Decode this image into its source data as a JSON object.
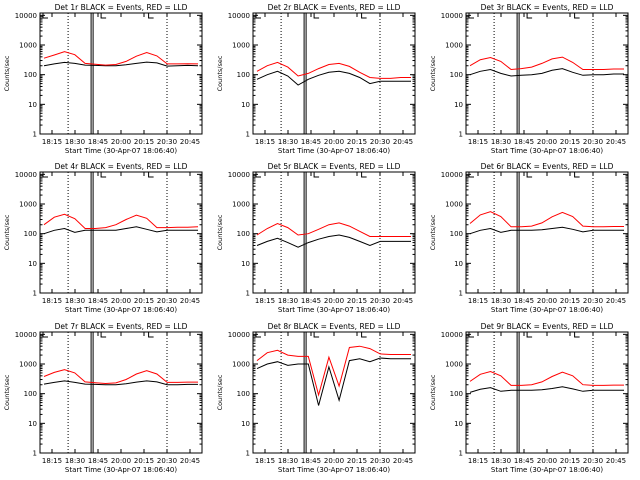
{
  "colors": {
    "events": "#000000",
    "lld": "#ff0000",
    "axis": "#000000"
  },
  "chart_data": [
    {
      "type": "line",
      "title": "Det 1r BLACK = Events, RED = LLD",
      "xlabel": "Start Time (30-Apr-07 18:06:40)",
      "ylabel": "Counts/sec",
      "x_ticks": [
        "18:15",
        "18:30",
        "18:45",
        "20:00",
        "20:15",
        "20:30",
        "20:45"
      ],
      "y_ticks": [
        "1",
        "10",
        "100",
        "1000",
        "10000"
      ],
      "ylim": [
        1,
        12000
      ],
      "yscale": "log",
      "series": [
        {
          "name": "Events",
          "values": [
            200,
            230,
            260,
            240,
            210,
            205,
            200,
            200,
            215,
            240,
            265,
            250,
            195,
            200,
            205,
            200
          ]
        },
        {
          "name": "LLD",
          "values": [
            360,
            460,
            600,
            470,
            240,
            225,
            210,
            220,
            280,
            420,
            560,
            430,
            230,
            230,
            235,
            230
          ]
        }
      ]
    },
    {
      "type": "line",
      "title": "Det 2r BLACK = Events, RED = LLD",
      "xlabel": "Start Time (30-Apr-07 18:06:40)",
      "ylabel": "Counts/sec",
      "x_ticks": [
        "18:15",
        "18:30",
        "18:45",
        "20:00",
        "20:15",
        "20:30",
        "20:45"
      ],
      "y_ticks": [
        "1",
        "10",
        "100",
        "1000",
        "10000"
      ],
      "ylim": [
        1,
        12000
      ],
      "yscale": "log",
      "series": [
        {
          "name": "Events",
          "values": [
            70,
            100,
            130,
            90,
            45,
            70,
            95,
            120,
            130,
            110,
            80,
            50,
            60,
            60,
            60,
            60
          ]
        },
        {
          "name": "LLD",
          "values": [
            130,
            200,
            260,
            180,
            90,
            110,
            160,
            220,
            240,
            190,
            120,
            80,
            75,
            75,
            80,
            80
          ]
        }
      ]
    },
    {
      "type": "line",
      "title": "Det 3r BLACK = Events, RED = LLD",
      "xlabel": "Start Time (30-Apr-07 18:06:40)",
      "ylabel": "Counts/sec",
      "x_ticks": [
        "18:15",
        "18:30",
        "18:45",
        "20:00",
        "20:15",
        "20:30",
        "20:45"
      ],
      "y_ticks": [
        "1",
        "10",
        "100",
        "1000",
        "10000"
      ],
      "ylim": [
        1,
        12000
      ],
      "yscale": "log",
      "series": [
        {
          "name": "Events",
          "values": [
            100,
            130,
            150,
            110,
            90,
            95,
            100,
            110,
            140,
            160,
            120,
            95,
            100,
            100,
            105,
            105
          ]
        },
        {
          "name": "LLD",
          "values": [
            200,
            320,
            380,
            280,
            150,
            160,
            180,
            240,
            340,
            390,
            260,
            150,
            150,
            150,
            155,
            155
          ]
        }
      ]
    },
    {
      "type": "line",
      "title": "Det 4r BLACK = Events, RED = LLD",
      "xlabel": "Start Time (30-Apr-07 18:06:40)",
      "ylabel": "Counts/sec",
      "x_ticks": [
        "18:15",
        "18:30",
        "18:45",
        "20:00",
        "20:15",
        "20:30",
        "20:45"
      ],
      "y_ticks": [
        "1",
        "10",
        "100",
        "1000",
        "10000"
      ],
      "ylim": [
        1,
        12000
      ],
      "yscale": "log",
      "series": [
        {
          "name": "Events",
          "values": [
            100,
            130,
            150,
            110,
            130,
            130,
            130,
            130,
            150,
            170,
            140,
            115,
            130,
            130,
            130,
            130
          ]
        },
        {
          "name": "LLD",
          "values": [
            200,
            360,
            450,
            320,
            150,
            150,
            160,
            200,
            300,
            420,
            330,
            160,
            160,
            165,
            165,
            170
          ]
        }
      ]
    },
    {
      "type": "line",
      "title": "Det 5r BLACK = Events, RED = LLD",
      "xlabel": "Start Time (30-Apr-07 18:06:40)",
      "ylabel": "Counts/sec",
      "x_ticks": [
        "18:15",
        "18:30",
        "18:45",
        "20:00",
        "20:15",
        "20:30",
        "20:45"
      ],
      "y_ticks": [
        "1",
        "10",
        "100",
        "1000",
        "10000"
      ],
      "ylim": [
        1,
        12000
      ],
      "yscale": "log",
      "series": [
        {
          "name": "Events",
          "values": [
            40,
            55,
            70,
            50,
            35,
            50,
            65,
            80,
            90,
            75,
            55,
            40,
            55,
            55,
            55,
            55
          ]
        },
        {
          "name": "LLD",
          "values": [
            90,
            150,
            220,
            160,
            90,
            100,
            140,
            200,
            230,
            180,
            120,
            80,
            80,
            80,
            80,
            80
          ]
        }
      ]
    },
    {
      "type": "line",
      "title": "Det 6r BLACK = Events, RED = LLD",
      "xlabel": "Start Time (30-Apr-07 18:06:40)",
      "ylabel": "Counts/sec",
      "x_ticks": [
        "18:15",
        "18:30",
        "18:45",
        "20:00",
        "20:15",
        "20:30",
        "20:45"
      ],
      "y_ticks": [
        "1",
        "10",
        "100",
        "1000",
        "10000"
      ],
      "ylim": [
        1,
        12000
      ],
      "yscale": "log",
      "series": [
        {
          "name": "Events",
          "values": [
            100,
            130,
            150,
            110,
            130,
            130,
            130,
            135,
            150,
            165,
            140,
            115,
            130,
            130,
            130,
            130
          ]
        },
        {
          "name": "LLD",
          "values": [
            220,
            430,
            550,
            380,
            170,
            170,
            180,
            230,
            370,
            520,
            380,
            180,
            170,
            170,
            175,
            175
          ]
        }
      ]
    },
    {
      "type": "line",
      "title": "Det 7r BLACK = Events, RED = LLD",
      "xlabel": "Start Time (30-Apr-07 18:06:40)",
      "ylabel": "Counts/sec",
      "x_ticks": [
        "18:15",
        "18:30",
        "18:45",
        "20:00",
        "20:15",
        "20:30",
        "20:45"
      ],
      "y_ticks": [
        "1",
        "10",
        "100",
        "1000",
        "10000"
      ],
      "ylim": [
        1,
        12000
      ],
      "yscale": "log",
      "series": [
        {
          "name": "Events",
          "values": [
            210,
            240,
            270,
            240,
            210,
            205,
            200,
            200,
            215,
            245,
            270,
            250,
            200,
            200,
            205,
            205
          ]
        },
        {
          "name": "LLD",
          "values": [
            380,
            520,
            650,
            500,
            250,
            235,
            220,
            230,
            300,
            460,
            600,
            460,
            240,
            240,
            245,
            245
          ]
        }
      ]
    },
    {
      "type": "line",
      "title": "Det 8r BLACK = Events, RED = LLD",
      "xlabel": "Start Time (30-Apr-07 18:06:40)",
      "ylabel": "Counts/sec",
      "x_ticks": [
        "18:15",
        "18:30",
        "18:45",
        "20:00",
        "20:15",
        "20:30",
        "20:45"
      ],
      "y_ticks": [
        "1",
        "10",
        "100",
        "1000",
        "10000"
      ],
      "ylim": [
        1,
        12000
      ],
      "yscale": "log",
      "series": [
        {
          "name": "Events",
          "values": [
            700,
            1000,
            1200,
            900,
            1000,
            1000,
            40,
            800,
            60,
            1300,
            1500,
            1200,
            1600,
            1500,
            1500,
            1500
          ]
        },
        {
          "name": "LLD",
          "values": [
            1300,
            2400,
            2900,
            2000,
            1800,
            1800,
            90,
            1700,
            180,
            3600,
            4000,
            3300,
            2200,
            2100,
            2100,
            2100
          ]
        }
      ]
    },
    {
      "type": "line",
      "title": "Det 9r BLACK = Events, RED = LLD",
      "xlabel": "Start Time (30-Apr-07 18:06:40)",
      "ylabel": "Counts/sec",
      "x_ticks": [
        "18:15",
        "18:30",
        "18:45",
        "20:00",
        "20:15",
        "20:30",
        "20:45"
      ],
      "y_ticks": [
        "1",
        "10",
        "100",
        "1000",
        "10000"
      ],
      "ylim": [
        1,
        12000
      ],
      "yscale": "log",
      "series": [
        {
          "name": "Events",
          "values": [
            110,
            140,
            160,
            120,
            130,
            130,
            130,
            135,
            150,
            170,
            145,
            120,
            130,
            130,
            130,
            130
          ]
        },
        {
          "name": "LLD",
          "values": [
            260,
            450,
            560,
            400,
            190,
            190,
            200,
            250,
            380,
            530,
            400,
            200,
            190,
            190,
            195,
            195
          ]
        }
      ]
    }
  ]
}
